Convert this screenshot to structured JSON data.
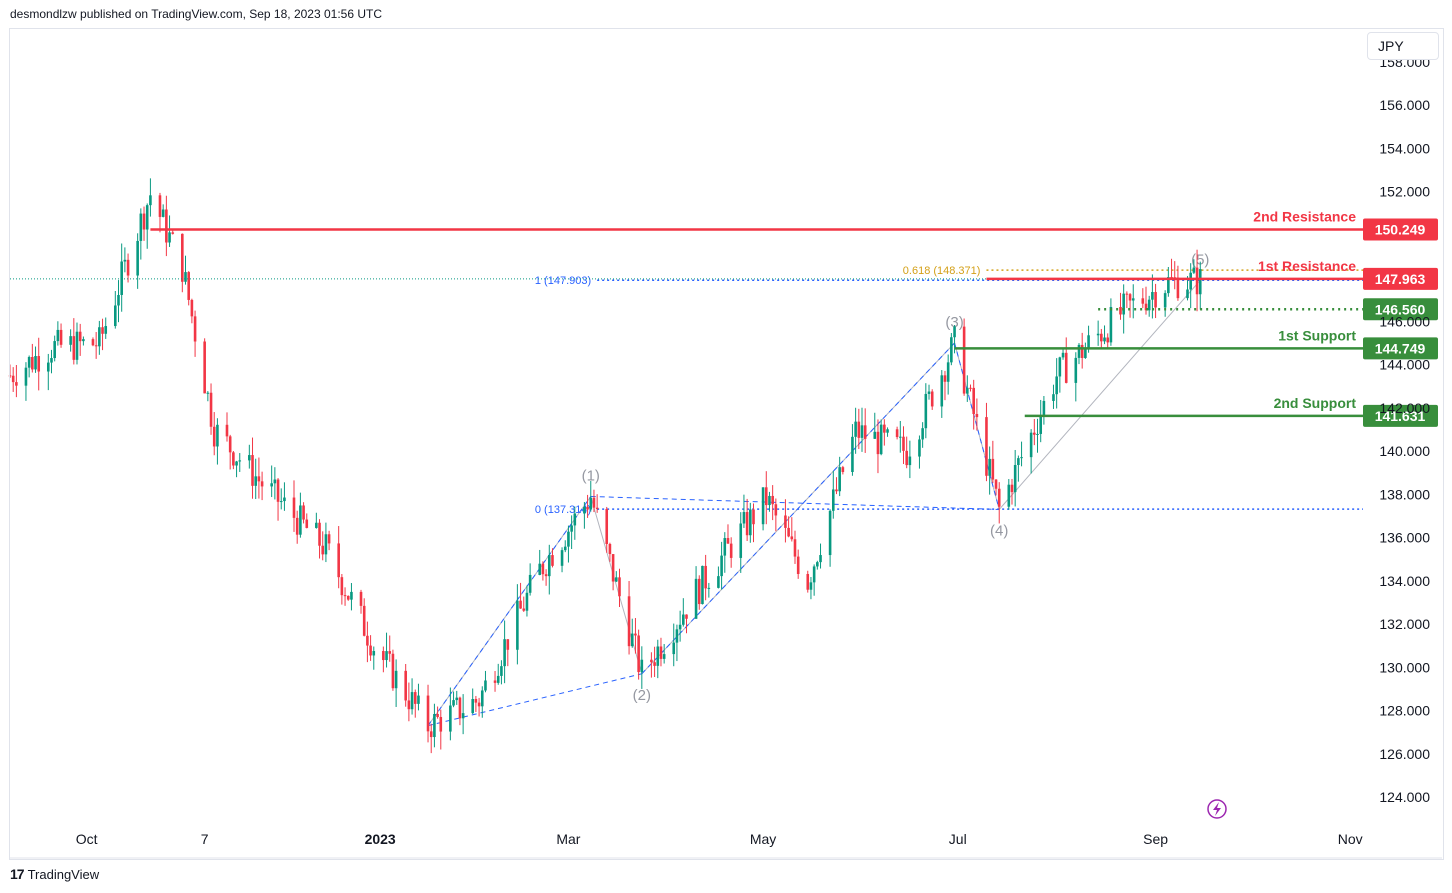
{
  "header": {
    "publisher": "desmondlzw published on TradingView.com, Sep 18, 2023 01:56 UTC"
  },
  "currency_label": "JPY",
  "footer": {
    "brand": "TradingView",
    "logo_glyph": "17"
  },
  "colors": {
    "up": "#089981",
    "down": "#f23645",
    "resistance": "#f23645",
    "support": "#388e3c",
    "fib": "#2962ff",
    "fib_gold": "#d4a017",
    "wave": "#9598a1"
  },
  "chart_data": {
    "type": "candlestick",
    "title": "",
    "ylim": [
      123,
      159
    ],
    "y_ticks": [
      {
        "value": 158,
        "label": "158.000"
      },
      {
        "value": 156,
        "label": "156.000"
      },
      {
        "value": 154,
        "label": "154.000"
      },
      {
        "value": 152,
        "label": "152.000"
      },
      {
        "value": 146,
        "label": "146.000"
      },
      {
        "value": 144,
        "label": "144.000"
      },
      {
        "value": 142,
        "label": "142.000"
      },
      {
        "value": 140,
        "label": "140.000"
      },
      {
        "value": 138,
        "label": "138.000"
      },
      {
        "value": 136,
        "label": "136.000"
      },
      {
        "value": 134,
        "label": "134.000"
      },
      {
        "value": 132,
        "label": "132.000"
      },
      {
        "value": 130,
        "label": "130.000"
      },
      {
        "value": 128,
        "label": "128.000"
      },
      {
        "value": 126,
        "label": "126.000"
      },
      {
        "value": 124,
        "label": "124.000"
      }
    ],
    "x_ticks": [
      {
        "label": "Oct",
        "date": "2022-10-01",
        "bold": false
      },
      {
        "label": "7",
        "date": "2022-11-07",
        "bold": false
      },
      {
        "label": "2023",
        "date": "2023-01-01",
        "bold": true
      },
      {
        "label": "Mar",
        "date": "2023-03-01",
        "bold": false
      },
      {
        "label": "May",
        "date": "2023-05-01",
        "bold": false
      },
      {
        "label": "Jul",
        "date": "2023-07-01",
        "bold": false
      },
      {
        "label": "Sep",
        "date": "2023-09-01",
        "bold": false
      },
      {
        "label": "Nov",
        "date": "2023-11-01",
        "bold": false
      }
    ],
    "price_path": [
      {
        "date": "2022-09-07",
        "price": 143.5
      },
      {
        "date": "2022-09-20",
        "price": 144.8
      },
      {
        "date": "2022-10-05",
        "price": 145.0
      },
      {
        "date": "2022-10-21",
        "price": 151.9
      },
      {
        "date": "2022-10-31",
        "price": 148.5
      },
      {
        "date": "2022-11-10",
        "price": 141.0
      },
      {
        "date": "2022-11-25",
        "price": 138.5
      },
      {
        "date": "2022-12-15",
        "price": 135.5
      },
      {
        "date": "2022-12-30",
        "price": 131.0
      },
      {
        "date": "2023-01-16",
        "price": 127.3
      },
      {
        "date": "2023-02-01",
        "price": 128.5
      },
      {
        "date": "2023-02-20",
        "price": 134.5
      },
      {
        "date": "2023-03-08",
        "price": 137.9
      },
      {
        "date": "2023-03-24",
        "price": 129.7
      },
      {
        "date": "2023-04-10",
        "price": 133.5
      },
      {
        "date": "2023-05-02",
        "price": 137.8
      },
      {
        "date": "2023-05-15",
        "price": 134.0
      },
      {
        "date": "2023-05-30",
        "price": 140.9
      },
      {
        "date": "2023-06-15",
        "price": 140.0
      },
      {
        "date": "2023-06-30",
        "price": 145.0
      },
      {
        "date": "2023-07-14",
        "price": 137.3
      },
      {
        "date": "2023-08-01",
        "price": 143.5
      },
      {
        "date": "2023-08-22",
        "price": 146.5
      },
      {
        "date": "2023-09-05",
        "price": 147.8
      },
      {
        "date": "2023-09-15",
        "price": 147.9
      }
    ],
    "current_price": 147.963,
    "levels": [
      {
        "name": "2nd Resistance",
        "value": 150.249,
        "value_label": "150.249",
        "kind": "resistance",
        "style": "solid",
        "start": "2022-10-21"
      },
      {
        "name": "1st Resistance",
        "value": 147.963,
        "value_label": "147.963",
        "kind": "resistance",
        "style": "solid",
        "start": "2023-07-10"
      },
      {
        "name": "",
        "value": 146.56,
        "value_label": "146.560",
        "kind": "support",
        "style": "dotted",
        "start": "2023-08-14"
      },
      {
        "name": "1st Support",
        "value": 144.749,
        "value_label": "144.749",
        "kind": "support",
        "style": "solid",
        "start": "2023-06-30"
      },
      {
        "name": "2nd Support",
        "value": 141.631,
        "value_label": "141.631",
        "kind": "support",
        "style": "solid",
        "start": "2023-07-22"
      }
    ],
    "fib_levels": [
      {
        "label": "1 (147.903)",
        "value": 147.903,
        "start": "2023-03-10",
        "color": "fib"
      },
      {
        "label": "0 (137.314)",
        "value": 137.314,
        "start": "2023-03-10",
        "color": "fib"
      },
      {
        "label": "0.618 (148.371)",
        "value": 148.371,
        "start": "2023-07-10",
        "color": "fib_gold"
      }
    ],
    "waves": [
      {
        "label": "(1)",
        "date": "2023-03-08",
        "price": 137.9,
        "position": "above"
      },
      {
        "label": "(2)",
        "date": "2023-03-24",
        "price": 129.7,
        "position": "below"
      },
      {
        "label": "(3)",
        "date": "2023-06-30",
        "price": 145.0,
        "position": "above"
      },
      {
        "label": "(4)",
        "date": "2023-07-14",
        "price": 137.3,
        "position": "below"
      },
      {
        "label": "(5)",
        "date": "2023-09-15",
        "price": 147.9,
        "position": "above"
      }
    ],
    "wave_start": {
      "date": "2023-01-16",
      "price": 127.3
    },
    "legend": "none",
    "grid": false
  }
}
